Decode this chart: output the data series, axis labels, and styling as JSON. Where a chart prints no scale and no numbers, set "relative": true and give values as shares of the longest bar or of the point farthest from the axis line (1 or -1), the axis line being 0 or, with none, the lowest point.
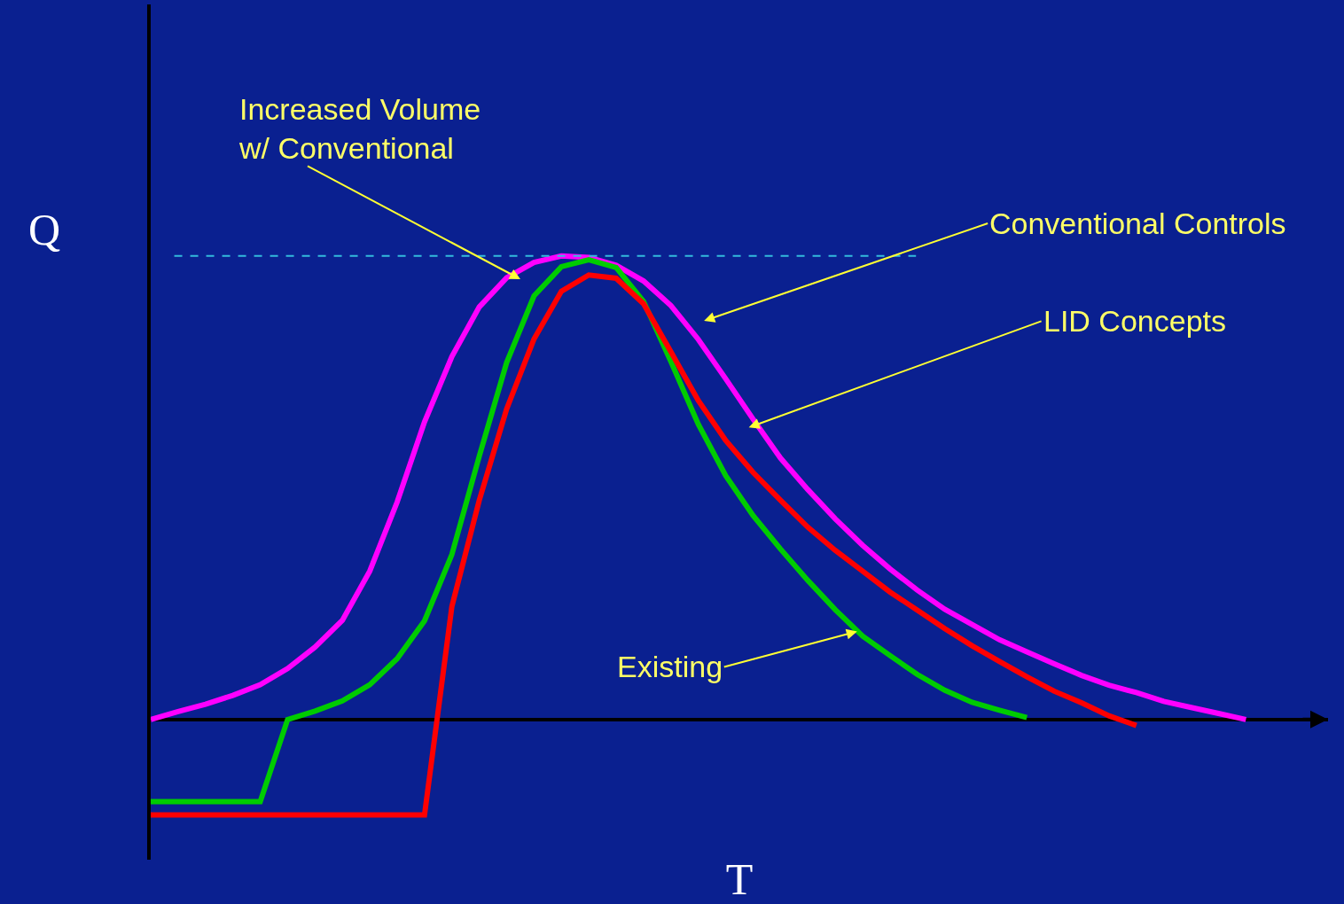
{
  "chart_data": {
    "type": "line",
    "relative": true,
    "xlabel": "T",
    "ylabel": "Q",
    "categories": [
      null,
      null,
      null,
      null,
      null,
      null,
      null,
      null,
      null,
      null,
      null,
      null,
      null,
      null,
      null,
      null,
      null,
      null,
      null,
      null,
      null,
      null,
      null,
      null,
      null,
      null,
      null,
      null,
      null,
      null,
      null,
      null,
      null,
      null,
      null,
      null,
      null,
      null,
      null,
      null,
      null,
      null,
      null,
      null
    ],
    "series": [
      {
        "color": "#ff00ff",
        "values": [
          0,
          0.017,
          0.033,
          0.052,
          0.075,
          0.11,
          0.156,
          0.214,
          0.32,
          0.469,
          0.642,
          0.783,
          0.89,
          0.953,
          0.986,
          1.0,
          0.997,
          0.98,
          0.946,
          0.893,
          0.82,
          0.735,
          0.648,
          0.564,
          0.496,
          0.433,
          0.376,
          0.325,
          0.279,
          0.238,
          0.205,
          0.172,
          0.146,
          0.12,
          0.095,
          0.074,
          0.058,
          0.039,
          0.026,
          0.013,
          0,
          null,
          null,
          null
        ]
      },
      {
        "color": "#00cc00",
        "values": [
          -0.177,
          -0.177,
          -0.177,
          -0.177,
          -0.177,
          0,
          0.018,
          0.04,
          0.075,
          0.131,
          0.213,
          0.356,
          0.568,
          0.77,
          0.914,
          0.977,
          0.992,
          0.975,
          0.902,
          0.772,
          0.637,
          0.526,
          0.44,
          0.368,
          0.3,
          0.237,
          0.18,
          0.138,
          0.097,
          0.063,
          0.037,
          0.02,
          0.004,
          null,
          null,
          null,
          null,
          null,
          null,
          null,
          null,
          null,
          null,
          null
        ]
      },
      {
        "color": "#ff0000",
        "values": [
          -0.206,
          -0.206,
          -0.206,
          -0.206,
          -0.206,
          -0.206,
          -0.206,
          -0.206,
          -0.206,
          -0.206,
          -0.206,
          0.244,
          0.473,
          0.67,
          0.821,
          0.924,
          0.959,
          0.952,
          0.897,
          0.793,
          0.688,
          0.602,
          0.533,
          0.473,
          0.415,
          0.365,
          0.32,
          0.275,
          0.236,
          0.196,
          0.159,
          0.125,
          0.092,
          0.061,
          0.036,
          0.008,
          -0.013,
          null,
          null,
          null,
          null,
          null,
          null,
          null
        ]
      }
    ],
    "ref_lines": [
      {
        "axis": "y",
        "value": 1,
        "color": "#33bbdd",
        "line_style": "dashed"
      }
    ],
    "annotations": [
      "Increased Volume\nw/ Conventional",
      "Conventional Controls",
      "LID Concepts",
      "Existing"
    ]
  }
}
